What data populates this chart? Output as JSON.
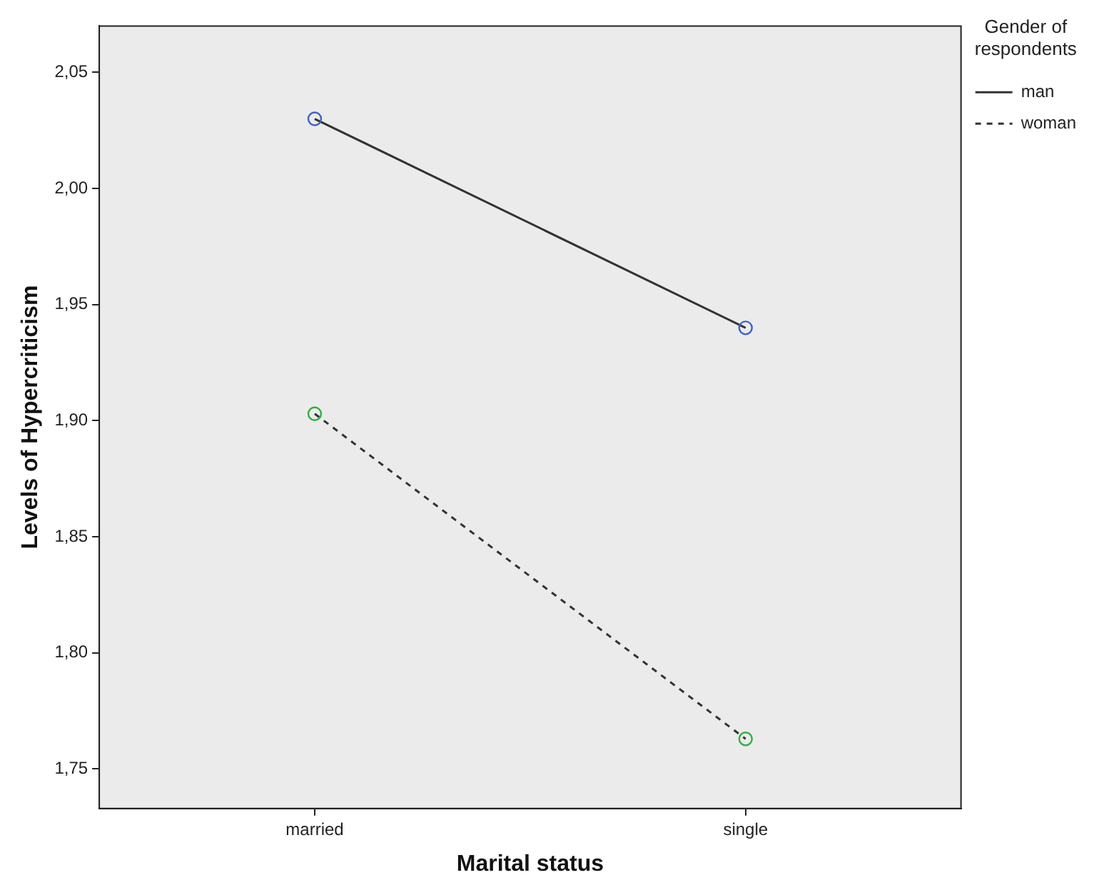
{
  "chart_data": {
    "type": "line",
    "xlabel": "Marital status",
    "ylabel": "Levels of Hypercriticism",
    "legend_title": "Gender of respondents",
    "categories": [
      "married",
      "single"
    ],
    "series": [
      {
        "name": "man",
        "color": "#333333",
        "colors": [
          "#4060c8",
          "#4060c8"
        ],
        "line_style": "solid",
        "values": [
          2.03,
          1.94
        ]
      },
      {
        "name": "woman",
        "color": "#333333",
        "colors": [
          "#30b040",
          "#30b040"
        ],
        "line_style": "dashed",
        "values": [
          1.903,
          1.763
        ]
      }
    ],
    "ylim": [
      1.733,
      2.07
    ],
    "yticks": [
      {
        "value": 1.75,
        "label": "1,75"
      },
      {
        "value": 1.8,
        "label": "1,80"
      },
      {
        "value": 1.85,
        "label": "1,85"
      },
      {
        "value": 1.9,
        "label": "1,90"
      },
      {
        "value": 1.95,
        "label": "1,95"
      },
      {
        "value": 2.0,
        "label": "2,00"
      },
      {
        "value": 2.05,
        "label": "2,05"
      }
    ],
    "grid": false,
    "legend": "top right",
    "marker": "circle"
  }
}
